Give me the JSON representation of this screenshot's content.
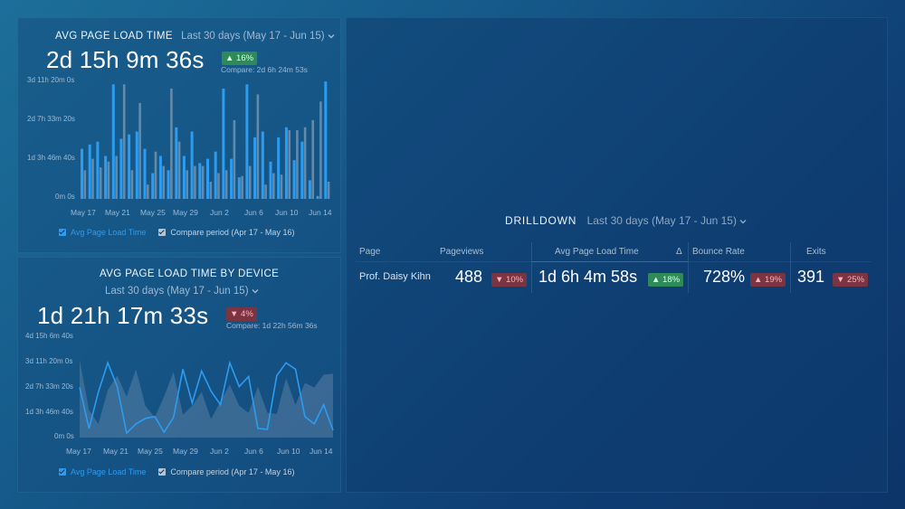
{
  "widget1": {
    "title": "AVG PAGE LOAD TIME",
    "range": "Last 30 days (May 17 - Jun 15)",
    "value": "2d 15h 9m 36s",
    "change": "▲ 16%",
    "compare": "Compare: 2d 6h 24m 53s",
    "legend_current": "Avg Page Load Time",
    "legend_compare": "Compare period (Apr 17 - May 16)"
  },
  "widget2": {
    "title": "AVG PAGE LOAD TIME BY DEVICE",
    "range": "Last 30 days (May 17 - Jun 15)",
    "value": "1d 21h 17m 33s",
    "change": "▼ 4%",
    "compare": "Compare: 1d 22h 56m 36s",
    "legend_current": "Avg Page Load Time",
    "legend_compare": "Compare period (Apr 17 - May 16)"
  },
  "drilldown": {
    "title": "DRILLDOWN",
    "range": "Last 30 days (May 17 - Jun 15)",
    "headers": {
      "page": "Page",
      "pageviews": "Pageviews",
      "avg_load": "Avg Page Load Time",
      "delta": "Δ",
      "bounce": "Bounce Rate",
      "exits": "Exits"
    },
    "row": {
      "page": "Prof. Daisy Kihn",
      "pageviews": "488",
      "pageviews_change": "▼ 10%",
      "avg_load": "1d 6h 4m 58s",
      "avg_load_change": "▲ 18%",
      "bounce": "728%",
      "bounce_change": "▲ 19%",
      "exits": "391",
      "exits_change": "▼ 25%"
    }
  },
  "colors": {
    "current": "#2c9cf0",
    "compare": "#7f9bb6",
    "up": "#2f8a5a",
    "down": "#7a3442"
  },
  "chart_data": [
    {
      "type": "bar",
      "title": "AVG PAGE LOAD TIME",
      "y_ticks": [
        "3d 11h 20m 0s",
        "2d 7h 33m 20s",
        "1d 3h 46m 40s",
        "0m 0s"
      ],
      "x_ticks": [
        "May 17",
        "May 21",
        "May 25",
        "May 29",
        "Jun 2",
        "Jun 6",
        "Jun 10",
        "Jun 14"
      ],
      "ylim_hours": [
        0,
        83.33
      ],
      "series": [
        {
          "name": "Avg Page Load Time",
          "values": [
            35,
            38,
            40,
            30,
            80,
            42,
            45,
            47,
            35,
            18,
            30,
            20,
            50,
            30,
            47,
            25,
            28,
            33,
            77,
            28,
            15,
            80,
            43,
            47,
            26,
            43,
            50,
            27,
            40,
            13,
            2,
            82
          ]
        },
        {
          "name": "Compare period (Apr 17 - May 16)",
          "values": [
            20,
            28,
            22,
            26,
            30,
            80,
            20,
            67,
            10,
            33,
            23,
            77,
            40,
            20,
            23,
            23,
            12,
            18,
            20,
            55,
            16,
            23,
            73,
            10,
            18,
            17,
            48,
            48,
            50,
            55,
            68,
            12
          ]
        }
      ]
    },
    {
      "type": "line",
      "title": "AVG PAGE LOAD TIME BY DEVICE",
      "y_ticks": [
        "4d 15h 6m 40s",
        "3d 11h 20m 0s",
        "2d 7h 33m 20s",
        "1d 3h 46m 40s",
        "0m 0s"
      ],
      "x_ticks": [
        "May 17",
        "May 21",
        "May 25",
        "May 29",
        "Jun 2",
        "Jun 6",
        "Jun 10",
        "Jun 14"
      ],
      "ylim_hours": [
        0,
        111.11
      ],
      "series": [
        {
          "name": "Avg Page Load Time",
          "values": [
            55,
            10,
            50,
            82,
            56,
            5,
            15,
            21,
            23,
            6,
            22,
            75,
            38,
            73,
            51,
            36,
            82,
            56,
            67,
            10,
            9,
            68,
            82,
            75,
            23,
            15,
            36,
            8
          ]
        },
        {
          "name": "Compare period (Apr 17 - May 16)",
          "values": [
            85,
            30,
            15,
            52,
            68,
            45,
            75,
            35,
            22,
            45,
            72,
            25,
            35,
            50,
            20,
            40,
            58,
            35,
            27,
            56,
            27,
            26,
            65,
            36,
            60,
            55,
            69,
            70
          ]
        }
      ]
    }
  ]
}
